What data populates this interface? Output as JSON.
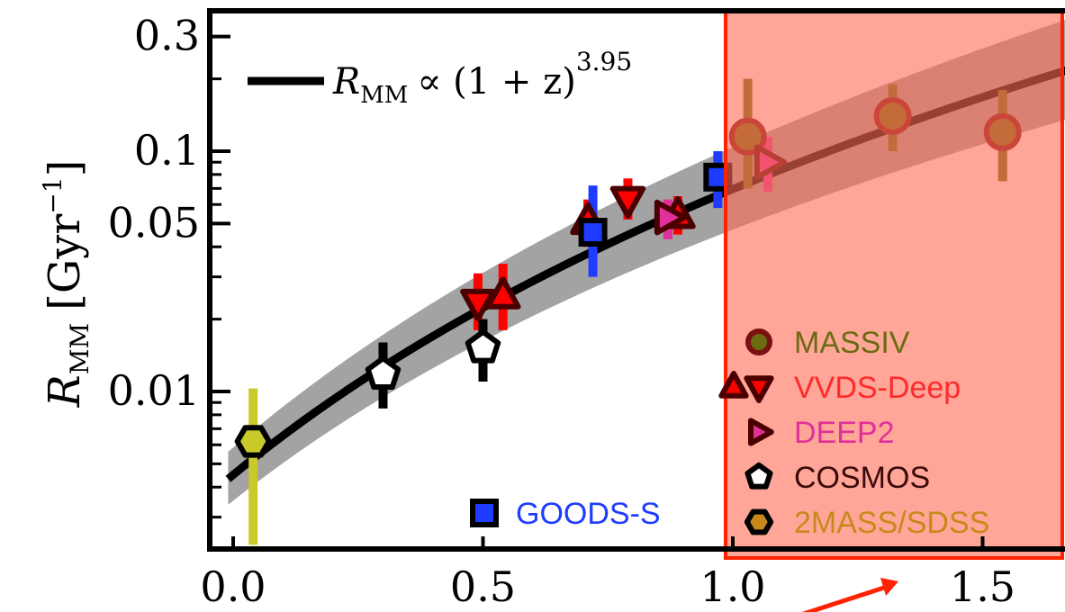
{
  "chart_data": {
    "type": "scatter",
    "ylabel": "R_MM [Gyr^-1]",
    "ylabel_parts": {
      "main": "R",
      "sub": "MM",
      "unit_open": "[Gyr",
      "unit_exp": "−1",
      "unit_close": "]"
    },
    "xlim": [
      -0.05,
      1.7
    ],
    "ylim": [
      0.0015,
      0.36
    ],
    "yscale": "log",
    "xticks": [
      0.0,
      0.5,
      1.0,
      1.5
    ],
    "xtick_labels": [
      "0.0",
      "0.5",
      "1.0",
      "1.5"
    ],
    "yticks": [
      0.01,
      0.05,
      0.1,
      0.3
    ],
    "ytick_labels": [
      "0.01",
      "0.05",
      "0.1",
      "0.3"
    ],
    "fit": {
      "label_prefix": "R",
      "label_sub": "MM",
      "label_rel": "∝ (1 + z)",
      "label_exp": "3.95",
      "exponent": 3.95,
      "norm": 0.0045,
      "band_low_factor": 0.78,
      "band_high_factor": 1.3
    },
    "highlight_region": {
      "x_from": 1.0,
      "x_to": 1.7
    },
    "series": [
      {
        "name": "MASSIV",
        "marker": "circle",
        "face": "#6b6b12",
        "edge": "#7a1010",
        "bar": "#6b6b12",
        "points": [
          {
            "x": 1.03,
            "y": 0.115,
            "lo": 0.07,
            "hi": 0.2
          },
          {
            "x": 1.32,
            "y": 0.14,
            "lo": 0.1,
            "hi": 0.19
          },
          {
            "x": 1.54,
            "y": 0.12,
            "lo": 0.075,
            "hi": 0.18
          }
        ]
      },
      {
        "name": "VVDS-Deep",
        "marker": "triangle",
        "face": "#ff0000",
        "edge": "#4a0000",
        "bar": "#ff0000",
        "points": [
          {
            "x": 0.49,
            "y": 0.0235,
            "lo": 0.018,
            "hi": 0.031
          },
          {
            "x": 0.54,
            "y": 0.025,
            "lo": 0.018,
            "hi": 0.034
          },
          {
            "x": 0.71,
            "y": 0.051,
            "lo": 0.04,
            "hi": 0.063
          },
          {
            "x": 0.79,
            "y": 0.063,
            "lo": 0.052,
            "hi": 0.077
          },
          {
            "x": 0.89,
            "y": 0.054,
            "lo": 0.045,
            "hi": 0.065
          }
        ]
      },
      {
        "name": "DEEP2",
        "marker": "triangle-right",
        "face": "#e0309a",
        "edge": "#4a0000",
        "bar": "#e0309a",
        "points": [
          {
            "x": 0.87,
            "y": 0.053,
            "lo": 0.043,
            "hi": 0.063
          },
          {
            "x": 1.07,
            "y": 0.09,
            "lo": 0.068,
            "hi": 0.115
          }
        ]
      },
      {
        "name": "COSMOS",
        "marker": "pentagon",
        "face": "#ffffff",
        "edge": "#000000",
        "bar": "#000000",
        "points": [
          {
            "x": 0.3,
            "y": 0.0118,
            "lo": 0.0085,
            "hi": 0.016
          },
          {
            "x": 0.5,
            "y": 0.0152,
            "lo": 0.011,
            "hi": 0.02
          }
        ]
      },
      {
        "name": "2MASS/SDSS",
        "marker": "hexagon",
        "face": "#c9c92a",
        "edge": "#000000",
        "bar": "#c9c92a",
        "points": [
          {
            "x": 0.04,
            "y": 0.0062,
            "lo": 0.0023,
            "hi": 0.0103
          }
        ]
      },
      {
        "name": "GOODS-S",
        "marker": "square",
        "face": "#1e3cff",
        "edge": "#000000",
        "bar": "#1e3cff",
        "points": [
          {
            "x": 0.72,
            "y": 0.046,
            "lo": 0.03,
            "hi": 0.072
          },
          {
            "x": 0.97,
            "y": 0.078,
            "lo": 0.058,
            "hi": 0.1
          }
        ]
      }
    ],
    "legend_right": [
      {
        "label": "MASSIV",
        "color": "#6b6b12"
      },
      {
        "label": "VVDS-Deep",
        "color": "#ff2a2a"
      },
      {
        "label": "DEEP2",
        "color": "#e0309a"
      },
      {
        "label": "COSMOS",
        "color": "#3a0a0a"
      },
      {
        "label": "2MASS/SDSS",
        "color": "#c78a1a"
      }
    ],
    "legend_goods": {
      "label": "GOODS-S",
      "color": "#1e3cff"
    },
    "colors": {
      "band": "#8c8c8c",
      "highlight_fill": "#ff6a55",
      "highlight_edge": "#ff2200",
      "arrow": "#ff2200"
    }
  }
}
